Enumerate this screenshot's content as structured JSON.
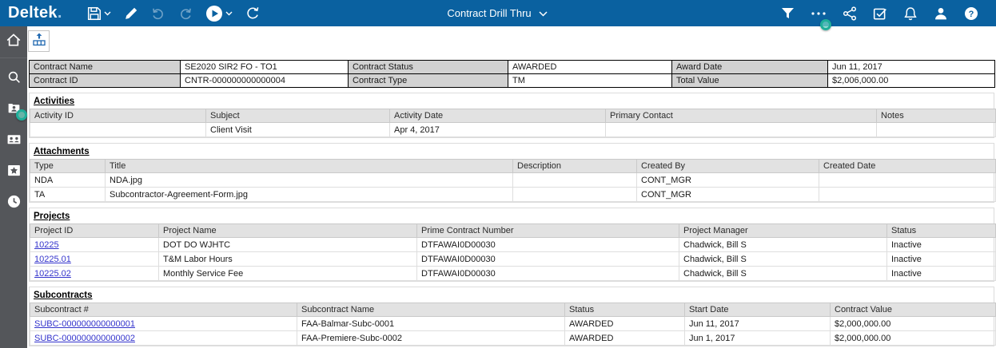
{
  "topbar": {
    "logo": "Deltek",
    "logo_suffix": ".",
    "title": "Contract Drill Thru",
    "left_icons": [
      "save",
      "edit",
      "undo",
      "redo",
      "run",
      "refresh"
    ],
    "right_icons": [
      "filter",
      "more-options",
      "share",
      "tasks",
      "notifications",
      "user-profile",
      "help"
    ]
  },
  "sidebar": {
    "items": [
      "home",
      "search",
      "employee-folder",
      "contacts",
      "favorites",
      "recent-history"
    ]
  },
  "toolbar": {
    "export_icon": "export-table"
  },
  "contract_info": {
    "rows": [
      [
        {
          "label": "Contract Name",
          "value": "SE2020 SIR2 FO - TO1"
        },
        {
          "label": "Contract Status",
          "value": "AWARDED"
        },
        {
          "label": "Award Date",
          "value": "Jun 11, 2017"
        }
      ],
      [
        {
          "label": "Contract ID",
          "value": "CNTR-000000000000004"
        },
        {
          "label": "Contract Type",
          "value": "TM"
        },
        {
          "label": "Total Value",
          "value": "$2,006,000.00"
        }
      ]
    ]
  },
  "sections": [
    {
      "title": "Activities",
      "link_column": null,
      "columns": [
        "Activity ID",
        "Subject",
        "Activity Date",
        "Primary Contact",
        "Notes"
      ],
      "rows": [
        [
          "",
          "Client Visit",
          "Apr 4, 2017",
          "",
          ""
        ]
      ]
    },
    {
      "title": "Attachments",
      "link_column": null,
      "columns": [
        "Type",
        "Title",
        "Description",
        "Created By",
        "Created Date"
      ],
      "rows": [
        [
          "NDA",
          "NDA.jpg",
          "",
          "CONT_MGR",
          ""
        ],
        [
          "TA",
          "Subcontractor-Agreement-Form.jpg",
          "",
          "CONT_MGR",
          ""
        ]
      ]
    },
    {
      "title": "Projects",
      "link_column": 0,
      "columns": [
        "Project ID",
        "Project Name",
        "Prime Contract Number",
        "Project Manager",
        "Status"
      ],
      "rows": [
        [
          "10225",
          "DOT DO WJHTC",
          "DTFAWAI0D00030",
          "Chadwick, Bill S",
          "Inactive"
        ],
        [
          "10225.01",
          "T&M Labor Hours",
          "DTFAWAI0D00030",
          "Chadwick, Bill S",
          "Inactive"
        ],
        [
          "10225.02",
          "Monthly Service Fee",
          "DTFAWAI0D00030",
          "Chadwick, Bill S",
          "Inactive"
        ]
      ]
    },
    {
      "title": "Subcontracts",
      "link_column": 0,
      "columns": [
        "Subcontract #",
        "Subcontract Name",
        "Status",
        "Start Date",
        "Contract Value"
      ],
      "rows": [
        [
          "SUBC-000000000000001",
          "FAA-Balmar-Subc-0001",
          "AWARDED",
          "Jun 11, 2017",
          "$2,000,000.00"
        ],
        [
          "SUBC-000000000000002",
          "FAA-Premiere-Subc-0002",
          "AWARDED",
          "Jun 1, 2017",
          "$2,000,000.00"
        ]
      ]
    }
  ],
  "colors": {
    "topbar": "#0A61A0",
    "sidebar": "#54565A",
    "link": "#3333CC",
    "label_cell_bg": "#D2D2D2",
    "header_cell_bg": "#E2E2E2",
    "click_marker": "#1FAE9A"
  }
}
